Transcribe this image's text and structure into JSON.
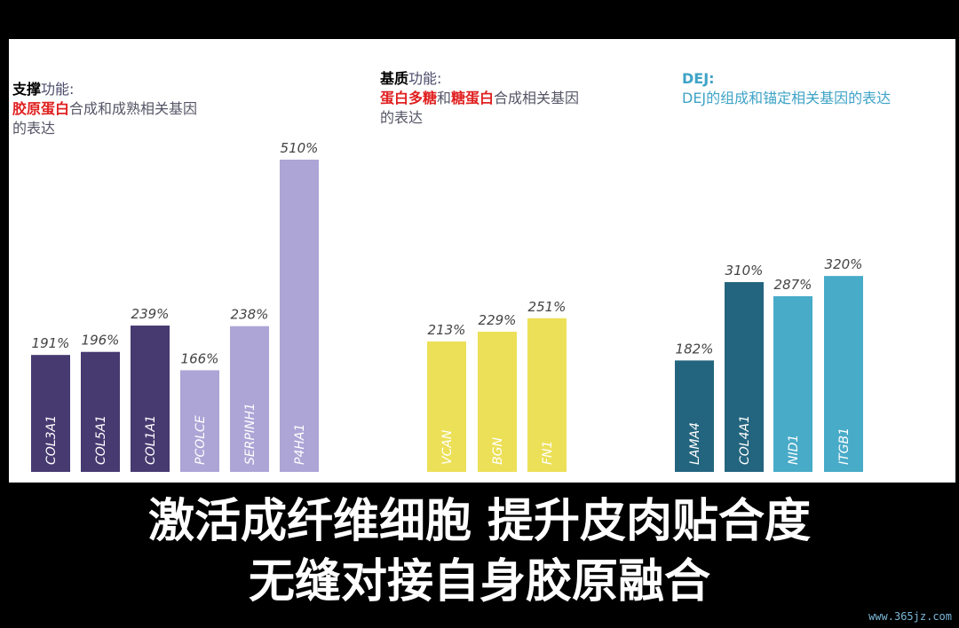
{
  "groups": [
    {
      "title_line1_strong": "支撑",
      "title_line1_light": "功能:",
      "title_line2_red": "胶原蛋白",
      "title_line2_rest": "合成和成熟相关基因",
      "title_line3": "的表达"
    },
    {
      "title_line1_strong": "基质",
      "title_line1_light": "功能:",
      "title_line2_red1": "蛋白多糖",
      "title_line2_mid": "和",
      "title_line2_red2": "糖蛋白",
      "title_line2_rest": "合成相关基因",
      "title_line3": "的表达"
    },
    {
      "title_line1": "DEJ:",
      "title_line2": "DEJ的组成和锚定相关基因的表达"
    }
  ],
  "chart_data": {
    "type": "bar",
    "categories": [
      "COL3A1",
      "COL5A1",
      "COL1A1",
      "PCOLCE",
      "SERPINH1",
      "P4HA1",
      "VCAN",
      "BGN",
      "FN1",
      "LAMA4",
      "COL4A1",
      "NID1",
      "ITGB1"
    ],
    "values": [
      191,
      196,
      239,
      166,
      238,
      510,
      213,
      229,
      251,
      182,
      310,
      287,
      320
    ],
    "value_labels": [
      "191%",
      "196%",
      "239%",
      "166%",
      "238%",
      "510%",
      "213%",
      "229%",
      "251%",
      "182%",
      "310%",
      "287%",
      "320%"
    ],
    "colors": [
      "#463a70",
      "#463a70",
      "#463a70",
      "#aca5d6",
      "#aca5d6",
      "#aca5d6",
      "#ece058",
      "#ece058",
      "#ece058",
      "#23657f",
      "#23657f",
      "#48abc8",
      "#48abc8"
    ],
    "unit": "%",
    "ylim": [
      0,
      510
    ],
    "grid": false,
    "axes_visible": false
  },
  "caption": {
    "line1": "激活成纤维细胞 提升皮肉贴合度",
    "line2": "无缝对接自身胶原融合"
  },
  "watermark": "www.365jz.com"
}
